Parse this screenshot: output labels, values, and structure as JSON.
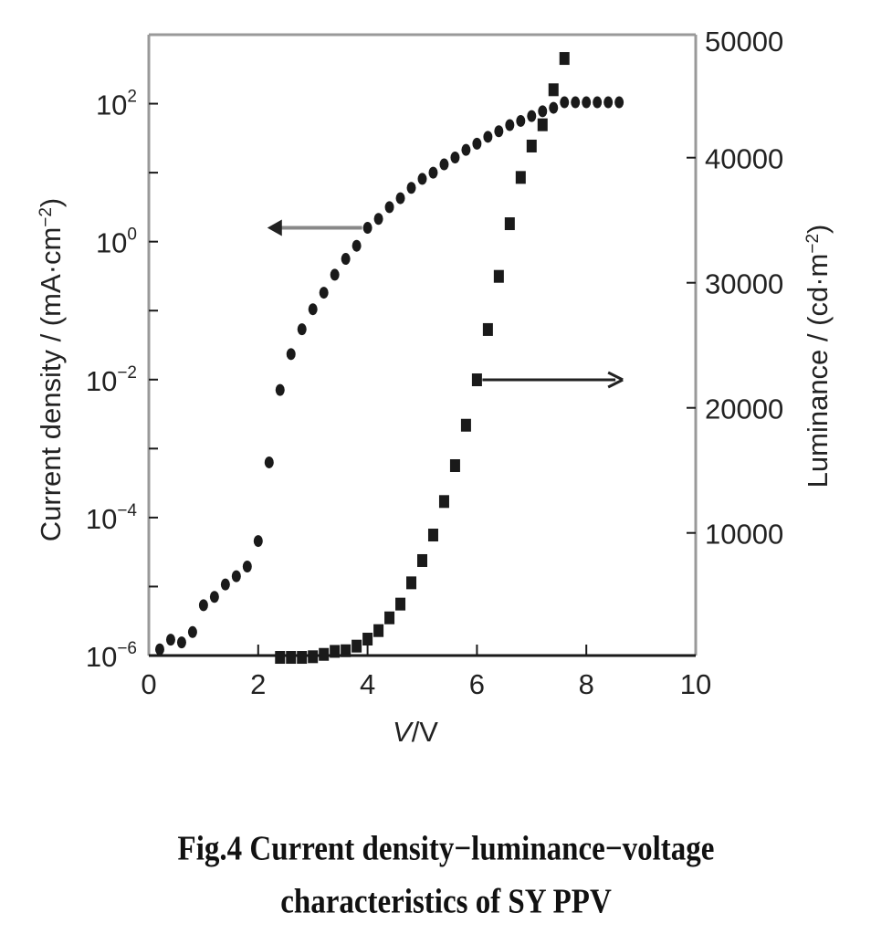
{
  "chart_data": {
    "type": "scatter",
    "title": "",
    "xlabel": {
      "italic": "V",
      "rest": "/V"
    },
    "ylabel_left": {
      "text": "Current density / (mA·cm",
      "exp": "−2",
      "close": ")"
    },
    "ylabel_right": {
      "text": "Luminance / (cd·m",
      "exp": "−2",
      "close": ")"
    },
    "xlim": [
      0,
      10
    ],
    "ylim_left_log10": [
      -6,
      3
    ],
    "ylim_right": [
      0,
      50000
    ],
    "x_ticks": [
      "0",
      "2",
      "4",
      "6",
      "8",
      "10"
    ],
    "left_ticks": [
      {
        "base": "10",
        "exp": "2",
        "log": 2
      },
      {
        "base": "10",
        "exp": "0",
        "log": 0
      },
      {
        "base": "10",
        "exp": "−2",
        "log": -2
      },
      {
        "base": "10",
        "exp": "−4",
        "log": -4
      },
      {
        "base": "10",
        "exp": "−6",
        "log": -6
      }
    ],
    "right_ticks": [
      "50000",
      "40000",
      "30000",
      "20000",
      "10000"
    ],
    "right_tick_values": [
      50000,
      40000,
      30000,
      20000,
      10000
    ],
    "series": [
      {
        "name": "Current density",
        "axis": "left",
        "marker": "circle",
        "x": [
          0.2,
          0.4,
          0.6,
          0.8,
          1.0,
          1.2,
          1.4,
          1.6,
          1.8,
          2.0,
          2.2,
          2.4,
          2.6,
          2.8,
          3.0,
          3.2,
          3.4,
          3.6,
          3.8,
          4.0,
          4.2,
          4.4,
          4.6,
          4.8,
          5.0,
          5.2,
          5.4,
          5.6,
          5.8,
          6.0,
          6.2,
          6.4,
          6.6,
          6.8,
          7.0,
          7.2,
          7.4,
          7.6,
          7.8,
          8.0,
          8.2,
          8.4,
          8.6
        ],
        "log10_y": [
          -5.91,
          -5.77,
          -5.81,
          -5.66,
          -5.27,
          -5.15,
          -4.97,
          -4.85,
          -4.71,
          -4.34,
          -3.2,
          -2.15,
          -1.63,
          -1.27,
          -0.98,
          -0.74,
          -0.48,
          -0.25,
          -0.06,
          0.2,
          0.33,
          0.5,
          0.63,
          0.78,
          0.91,
          1.0,
          1.12,
          1.22,
          1.33,
          1.42,
          1.52,
          1.6,
          1.69,
          1.75,
          1.82,
          1.89,
          1.94,
          2.02,
          2.02,
          2.02,
          2.02,
          2.02,
          2.02
        ]
      },
      {
        "name": "Luminance",
        "axis": "right",
        "marker": "square",
        "x": [
          2.4,
          2.6,
          2.8,
          3.0,
          3.2,
          3.4,
          3.6,
          3.8,
          4.0,
          4.2,
          4.4,
          4.6,
          4.8,
          5.0,
          5.2,
          5.4,
          5.6,
          5.8,
          6.0,
          6.2,
          6.4,
          6.6,
          6.8,
          7.0,
          7.2,
          7.4,
          7.6
        ],
        "y": [
          50,
          50,
          50,
          100,
          290,
          530,
          580,
          950,
          1510,
          2190,
          3210,
          4310,
          6010,
          7790,
          9830,
          12510,
          15380,
          18610,
          22240,
          26260,
          30510,
          34720,
          38420,
          40930,
          42630,
          45430,
          47930
        ]
      }
    ],
    "annotations": [
      {
        "type": "arrow",
        "meaning": "left axis",
        "from": [
          4.0,
          0.2
        ],
        "to": [
          2.3,
          0.2
        ]
      },
      {
        "type": "arrow",
        "meaning": "right axis",
        "from": [
          6.0,
          22240
        ],
        "to": [
          8.6,
          22240
        ]
      }
    ]
  },
  "caption": {
    "line1": "Fig.4    Current density−luminance−voltage",
    "line2": "characteristics of SY PPV"
  },
  "colors": {
    "marker": "#1a1a1a",
    "frame": "#999999",
    "axis": "#1a1a1a",
    "arrow_left": "#888888"
  }
}
